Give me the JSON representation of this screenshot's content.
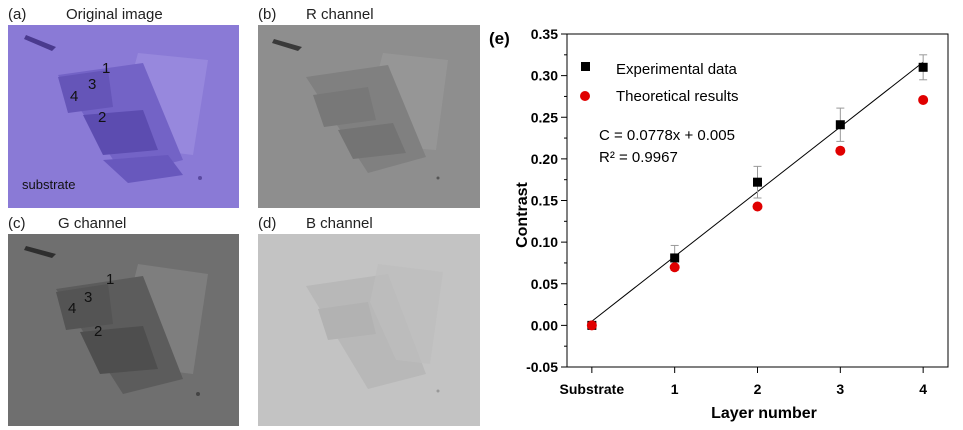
{
  "panels": {
    "a": {
      "tag": "(a)",
      "title": "Original image",
      "region_numbers": [
        "1",
        "3",
        "4",
        "2"
      ],
      "substrate_label": "substrate"
    },
    "b": {
      "tag": "(b)",
      "title": "R channel"
    },
    "c": {
      "tag": "(c)",
      "title": "G channel",
      "region_numbers": [
        "1",
        "3",
        "4",
        "2"
      ]
    },
    "d": {
      "tag": "(d)",
      "title": "B channel"
    }
  },
  "colors": {
    "original_bg": "#8a7ad6",
    "r_bg": "#8e8e8e",
    "g_bg": "#6f6f6f",
    "b_bg": "#c3c3c3",
    "experimental": "#000000",
    "theoretical": "#e00000",
    "fit_line": "#000000"
  },
  "chart_data": {
    "type": "scatter",
    "panel_tag": "(e)",
    "xlabel": "Layer number",
    "ylabel": "Contrast",
    "categories": [
      "Substrate",
      "1",
      "2",
      "3",
      "4"
    ],
    "x": [
      0,
      1,
      2,
      3,
      4
    ],
    "xlim": [
      -0.3,
      4.3
    ],
    "ylim": [
      -0.05,
      0.35
    ],
    "yticks": [
      "0.35",
      "0.30",
      "0.25",
      "0.20",
      "0.15",
      "0.10",
      "0.05",
      "0.00",
      "-0.05"
    ],
    "ytick_values": [
      0.35,
      0.3,
      0.25,
      0.2,
      0.15,
      0.1,
      0.05,
      0.0,
      -0.05
    ],
    "series": [
      {
        "name": "Experimental data",
        "marker": "square",
        "values": [
          0.0,
          0.081,
          0.172,
          0.241,
          0.31
        ],
        "errors": [
          0.0,
          0.015,
          0.019,
          0.02,
          0.015
        ]
      },
      {
        "name": "Theoretical results",
        "marker": "circle",
        "values": [
          0.0,
          0.077,
          0.15,
          0.217,
          0.278
        ]
      }
    ],
    "fit": {
      "slope": 0.0778,
      "intercept": 0.005,
      "equation": "C = 0.0778x + 0.005",
      "r2_label": "R² = 0.9967"
    },
    "legend_position": "top-left",
    "grid": false
  }
}
